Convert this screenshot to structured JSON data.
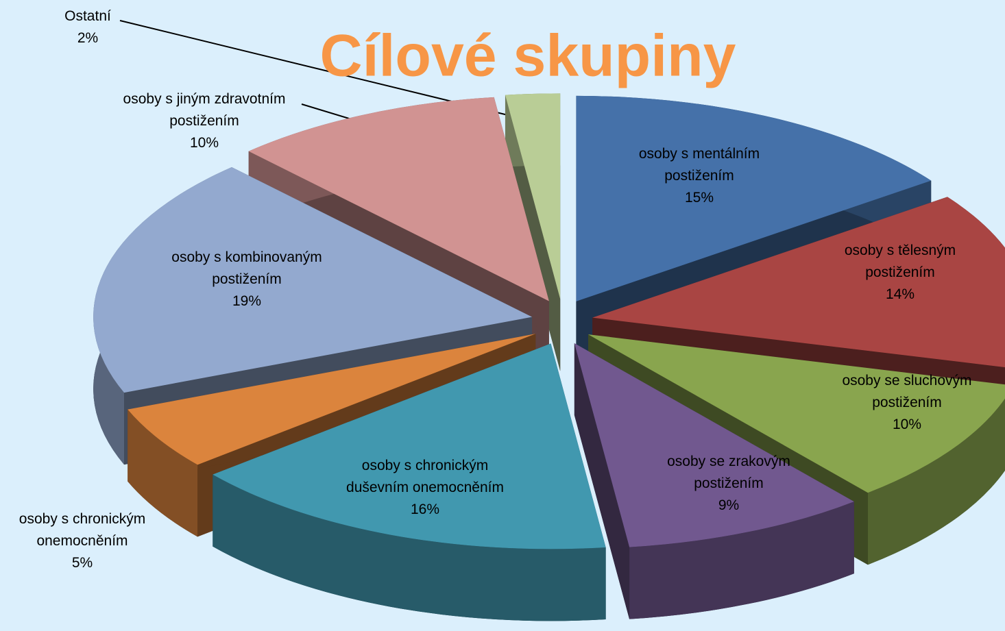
{
  "chart_data": {
    "type": "pie",
    "title": "Cílové skupiny",
    "categories": [
      "osoby s mentálním postižením",
      "osoby s tělesným postižením",
      "osoby se sluchovým postižením",
      "osoby se zrakovým postižením",
      "osoby s chronickým duševním onemocněním",
      "osoby s chronickým onemocněním",
      "osoby s kombinovaným postižením",
      "osoby s jiným zdravotním postižením",
      "Ostatní"
    ],
    "values": [
      15,
      14,
      10,
      9,
      16,
      5,
      19,
      10,
      2
    ],
    "value_labels": [
      "15%",
      "14%",
      "10%",
      "9%",
      "16%",
      "5%",
      "19%",
      "10%",
      "2%"
    ],
    "colors": [
      "#4571a9",
      "#a94543",
      "#89a54e",
      "#71588f",
      "#4198af",
      "#db843d",
      "#93a9cf",
      "#d19392",
      "#b9cd96"
    ]
  }
}
